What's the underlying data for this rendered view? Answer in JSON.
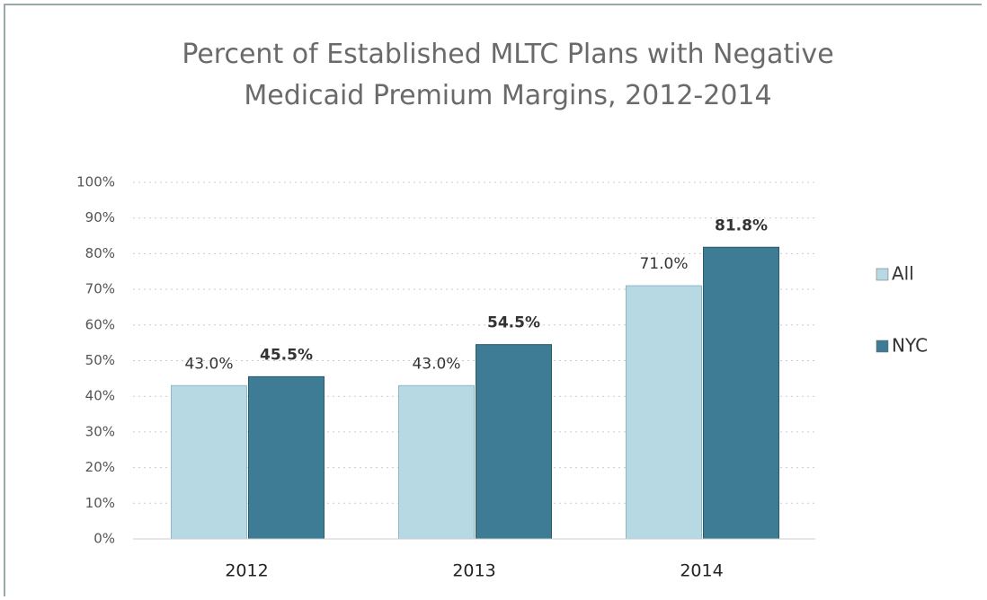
{
  "chart_data": {
    "type": "bar",
    "title": "Percent of Established MLTC Plans with Negative Medicaid Premium Margins, 2012-2014",
    "categories": [
      "2012",
      "2013",
      "2014"
    ],
    "series": [
      {
        "name": "All",
        "color": "#b7d9e4",
        "values": [
          43.0,
          43.0,
          71.0
        ],
        "value_labels": [
          "43.0%",
          "43.0%",
          "71.0%"
        ]
      },
      {
        "name": "NYC",
        "color": "#3d7c94",
        "values": [
          45.5,
          54.5,
          81.8
        ],
        "value_labels": [
          "45.5%",
          "54.5%",
          "81.8%"
        ]
      }
    ],
    "ylim": [
      0,
      100
    ],
    "yticks": [
      {
        "value": 0,
        "label": "0%"
      },
      {
        "value": 10,
        "label": "10%"
      },
      {
        "value": 20,
        "label": "20%"
      },
      {
        "value": 30,
        "label": "30%"
      },
      {
        "value": 40,
        "label": "40%"
      },
      {
        "value": 50,
        "label": "50%"
      },
      {
        "value": 60,
        "label": "60%"
      },
      {
        "value": 70,
        "label": "70%"
      },
      {
        "value": 80,
        "label": "80%"
      },
      {
        "value": 90,
        "label": "90%"
      },
      {
        "value": 100,
        "label": "100%"
      }
    ],
    "grid": true,
    "legend": "right"
  }
}
